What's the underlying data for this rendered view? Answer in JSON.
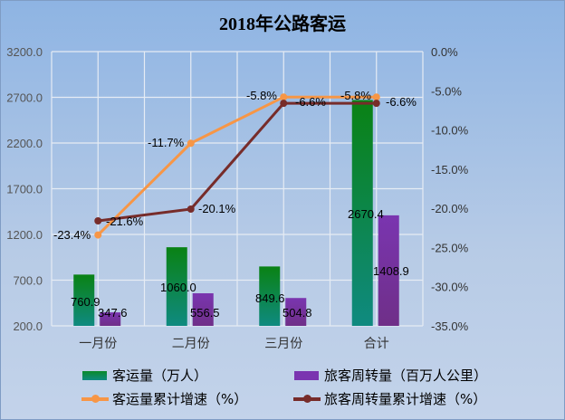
{
  "chart_data": {
    "type": "bar+line",
    "title": "2018年公路客运",
    "categories": [
      "一月份",
      "二月份",
      "三月份",
      "合计"
    ],
    "left_axis": {
      "ylim": [
        200,
        3200
      ],
      "ticks": [
        "200.0",
        "700.0",
        "1200.0",
        "1700.0",
        "2200.0",
        "2700.0",
        "3200.0"
      ]
    },
    "right_axis": {
      "ylim": [
        -35,
        0
      ],
      "ticks": [
        "-35.0%",
        "-30.0%",
        "-25.0%",
        "-20.0%",
        "-15.0%",
        "-10.0%",
        "-5.0%",
        "0.0%"
      ]
    },
    "grid": true,
    "legend_position": "bottom",
    "bar_series": [
      {
        "name": "客运量（万人）",
        "values": [
          760.9,
          1060.0,
          849.6,
          2670.4
        ],
        "labels": [
          "760.9",
          "1060.0",
          "849.6",
          "2670.4"
        ],
        "color": "#0a8a2a"
      },
      {
        "name": "旅客周转量（百万人公里）",
        "values": [
          347.6,
          556.5,
          504.8,
          1408.9
        ],
        "labels": [
          "347.6",
          "556.5",
          "504.8",
          "1408.9"
        ],
        "color": "#7a35b0"
      }
    ],
    "line_series": [
      {
        "name": "客运量累计增速（%）",
        "values": [
          -23.4,
          -11.7,
          -5.8,
          -5.8
        ],
        "labels": [
          "-23.4%",
          "-11.7%",
          "-5.8%",
          "-5.8%"
        ],
        "color": "#f79646"
      },
      {
        "name": "旅客周转量累计增速（%）",
        "values": [
          -21.6,
          -20.1,
          -6.6,
          -6.6
        ],
        "labels": [
          "-21.6%",
          "-20.1%",
          "-6.6%",
          "-6.6%"
        ],
        "color": "#772c2a"
      }
    ]
  }
}
